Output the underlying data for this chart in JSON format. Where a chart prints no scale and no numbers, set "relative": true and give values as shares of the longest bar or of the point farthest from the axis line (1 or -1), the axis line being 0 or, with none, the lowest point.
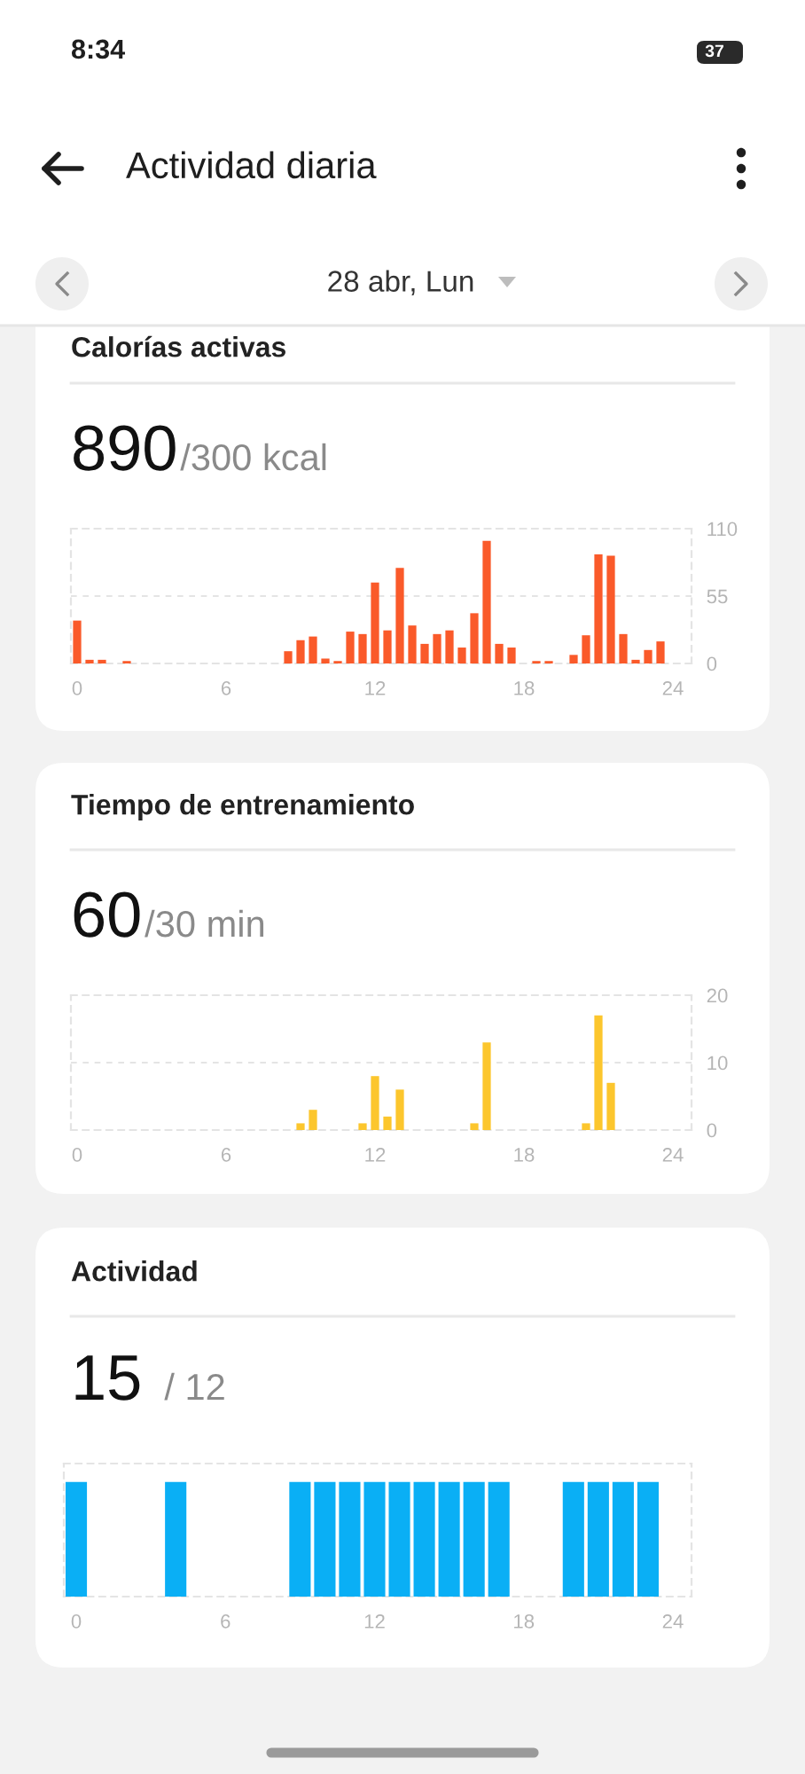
{
  "chart_data": [
    {
      "type": "bar",
      "title": "Calorías activas",
      "subtitle": "890",
      "annotations": [
        "/300 kcal",
        "8:34",
        "37",
        "Actividad diaria",
        "28 abr, Lun"
      ],
      "x": [
        0,
        0.5,
        1,
        2,
        8.5,
        9,
        9.5,
        10,
        10.5,
        11,
        11.5,
        12,
        12.5,
        13,
        13.5,
        14,
        14.5,
        15,
        15.5,
        16,
        16.5,
        17,
        17.5,
        18.5,
        19,
        20,
        20.5,
        21,
        21.5,
        22,
        22.5,
        23,
        23.5
      ],
      "values": [
        35,
        3,
        3,
        2,
        10,
        19,
        22,
        4,
        2,
        26,
        24,
        66,
        27,
        78,
        31,
        16,
        24,
        27,
        13,
        41,
        100,
        16,
        13,
        2,
        2,
        7,
        23,
        89,
        88,
        24,
        3,
        11,
        18
      ],
      "color": "#fa5a2a",
      "xlim": [
        -0.25,
        24.75
      ],
      "xticks": [
        0,
        6,
        12,
        18,
        24
      ],
      "ylim": [
        0,
        110
      ],
      "yticks": [
        0,
        55,
        110
      ],
      "grid": "y"
    },
    {
      "type": "bar",
      "title": "Tiempo de entrenamiento",
      "subtitle": "60",
      "annotations": [
        "/30 min"
      ],
      "x": [
        9,
        9.5,
        11.5,
        12,
        12.5,
        13,
        16,
        16.5,
        20.5,
        21,
        21.5
      ],
      "values": [
        1,
        3,
        1,
        8,
        2,
        6,
        1,
        13,
        1,
        17,
        7
      ],
      "color": "#fcc62d",
      "xlim": [
        -0.25,
        24.75
      ],
      "xticks": [
        0,
        6,
        12,
        18,
        24
      ],
      "ylim": [
        0,
        20
      ],
      "yticks": [
        0,
        10,
        20
      ],
      "grid": "y"
    },
    {
      "type": "bar",
      "title": "Actividad",
      "subtitle": "15",
      "annotations": [
        "/ 12"
      ],
      "x": [
        0,
        4,
        9,
        10,
        11,
        12,
        13,
        14,
        15,
        16,
        17,
        20,
        21,
        22,
        23
      ],
      "values": [
        1,
        1,
        1,
        1,
        1,
        1,
        1,
        1,
        1,
        1,
        1,
        1,
        1,
        1,
        1
      ],
      "relative": true,
      "color": "#0aaff5",
      "xlim": [
        -0.5,
        24.75
      ],
      "xticks": [
        0,
        6,
        12,
        18,
        24
      ],
      "tick_labels": "x"
    }
  ]
}
